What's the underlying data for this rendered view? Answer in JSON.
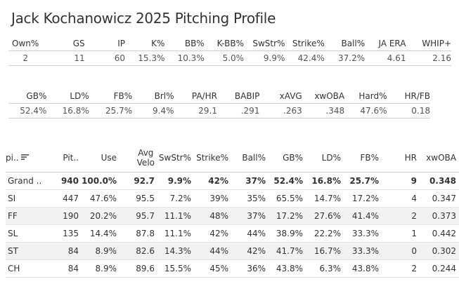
{
  "title": "Jack Kochanowicz 2025 Pitching Profile",
  "summary": {
    "headers": [
      "Own%",
      "GS",
      "IP",
      "K%",
      "BB%",
      "K-BB%",
      "SwStr%",
      "Strike%",
      "Ball%",
      "JA ERA",
      "WHIP+"
    ],
    "values": [
      "2",
      "11",
      "60",
      "15.3%",
      "10.3%",
      "5.0%",
      "9.9%",
      "42.4%",
      "37.2%",
      "4.61",
      "2.16"
    ]
  },
  "batted": {
    "headers": [
      "GB%",
      "LD%",
      "FB%",
      "Brl%",
      "PA/HR",
      "BABIP",
      "xAVG",
      "xwOBA",
      "Hard%",
      "HR/FB"
    ],
    "values": [
      "52.4%",
      "16.8%",
      "25.7%",
      "9.4%",
      "29.1",
      ".291",
      ".263",
      ".348",
      "47.6%",
      "0.18"
    ]
  },
  "pitches": {
    "headers": [
      "pi..",
      "Pit..",
      "Use",
      "Avg\nVelo",
      "SwStr%",
      "Strike%",
      "Ball%",
      "GB%",
      "LD%",
      "FB%",
      "HR",
      "xwOBA"
    ],
    "sort_icon": "sort-descending-icon",
    "rows": [
      [
        "Grand ..",
        "940",
        "100.0%",
        "92.7",
        "9.9%",
        "42%",
        "37%",
        "52.4%",
        "16.8%",
        "25.7%",
        "9",
        "0.348"
      ],
      [
        "SI",
        "447",
        "47.6%",
        "95.5",
        "7.2%",
        "39%",
        "35%",
        "65.5%",
        "14.7%",
        "17.2%",
        "4",
        "0.347"
      ],
      [
        "FF",
        "190",
        "20.2%",
        "95.7",
        "11.1%",
        "48%",
        "37%",
        "17.2%",
        "27.6%",
        "41.4%",
        "2",
        "0.373"
      ],
      [
        "SL",
        "135",
        "14.4%",
        "87.8",
        "11.1%",
        "42%",
        "44%",
        "38.9%",
        "22.2%",
        "33.3%",
        "1",
        "0.442"
      ],
      [
        "ST",
        "84",
        "8.9%",
        "82.6",
        "14.3%",
        "44%",
        "42%",
        "41.7%",
        "16.7%",
        "33.3%",
        "0",
        "0.302"
      ],
      [
        "CH",
        "84",
        "8.9%",
        "89.6",
        "15.5%",
        "45%",
        "36%",
        "43.8%",
        "6.3%",
        "43.8%",
        "2",
        "0.244"
      ]
    ]
  }
}
